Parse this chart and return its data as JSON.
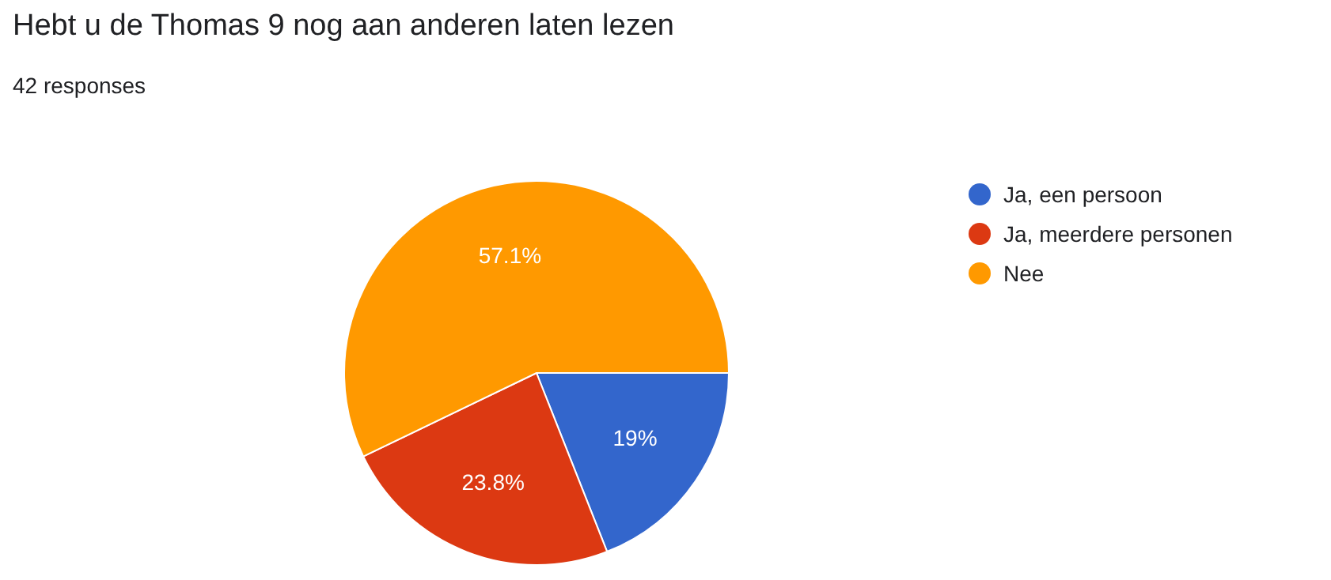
{
  "chart_data": {
    "type": "pie",
    "title": "Hebt u de Thomas 9 nog aan anderen laten lezen",
    "subtitle": "42 responses",
    "categories": [
      "Ja, een persoon",
      "Ja, meerdere personen",
      "Nee"
    ],
    "values": [
      19,
      23.8,
      57.1
    ],
    "colors": [
      "#3366cc",
      "#dc3912",
      "#ff9900"
    ],
    "value_labels": [
      "19%",
      "23.8%",
      "57.1%"
    ],
    "legend": "right"
  }
}
